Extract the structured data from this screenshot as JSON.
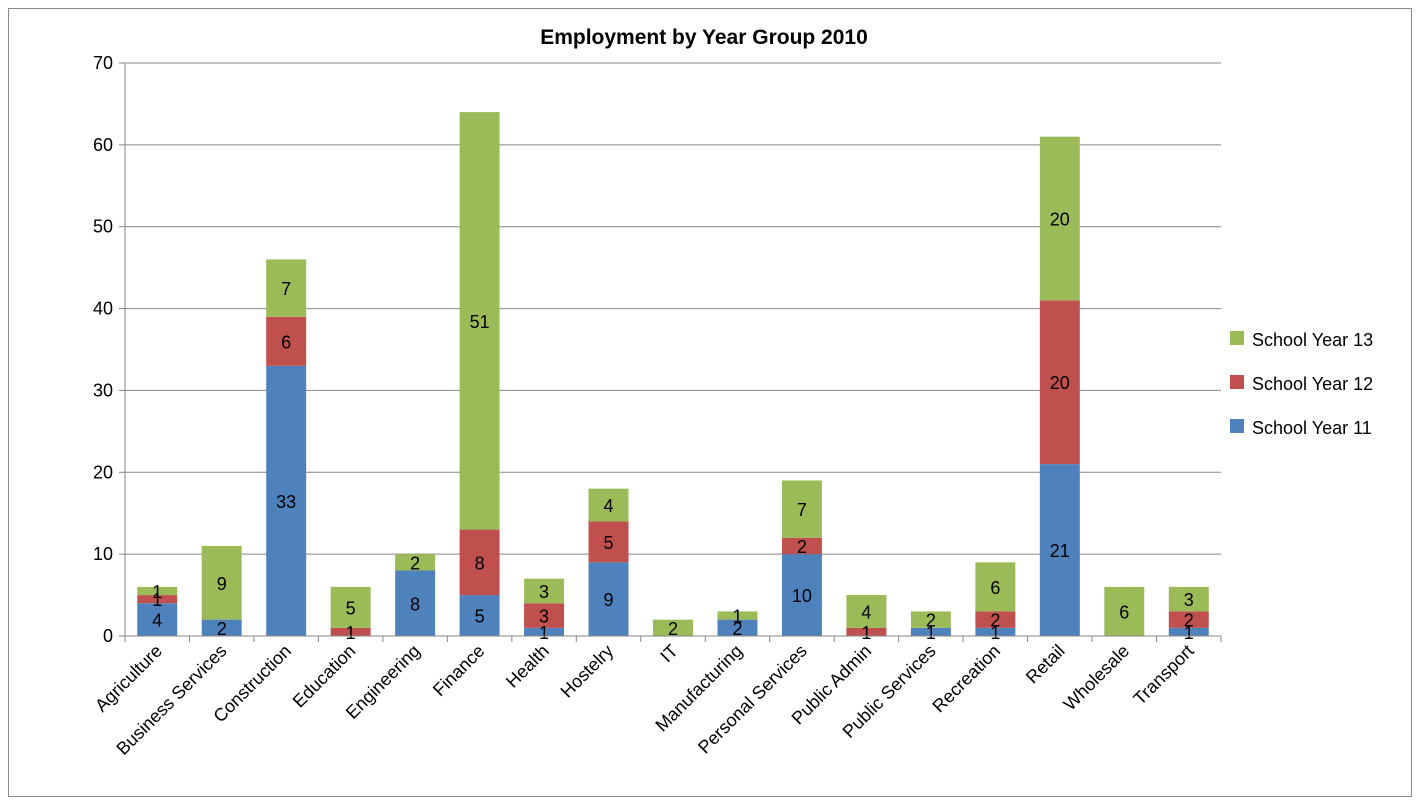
{
  "chart_data": {
    "type": "bar",
    "stacked": true,
    "title": "Employment by Year Group 2010",
    "xlabel": "",
    "ylabel": "",
    "ylim": [
      0,
      70
    ],
    "yticks": [
      0,
      10,
      20,
      30,
      40,
      50,
      60,
      70
    ],
    "grid": true,
    "legend_position": "right",
    "categories": [
      "Agriculture",
      "Business Services",
      "Construction",
      "Education",
      "Engineering",
      "Finance",
      "Health",
      "Hostelry",
      "IT",
      "Manufacturing",
      "Personal Services",
      "Public Admin",
      "Public Services",
      "Recreation",
      "Retail",
      "Wholesale",
      "Transport"
    ],
    "series": [
      {
        "name": "School Year 11",
        "color": "#4f81bd",
        "values": [
          4,
          2,
          33,
          0,
          8,
          5,
          1,
          9,
          0,
          2,
          10,
          0,
          1,
          1,
          21,
          0,
          1
        ]
      },
      {
        "name": "School Year 12",
        "color": "#c0504d",
        "values": [
          1,
          0,
          6,
          1,
          0,
          8,
          3,
          5,
          0,
          0,
          2,
          1,
          0,
          2,
          20,
          0,
          2
        ]
      },
      {
        "name": "School Year 13",
        "color": "#9bbb59",
        "values": [
          1,
          9,
          7,
          5,
          2,
          51,
          3,
          4,
          2,
          1,
          7,
          4,
          2,
          6,
          20,
          6,
          3
        ]
      }
    ],
    "legend_order": [
      "School Year 13",
      "School Year 12",
      "School Year 11"
    ]
  }
}
